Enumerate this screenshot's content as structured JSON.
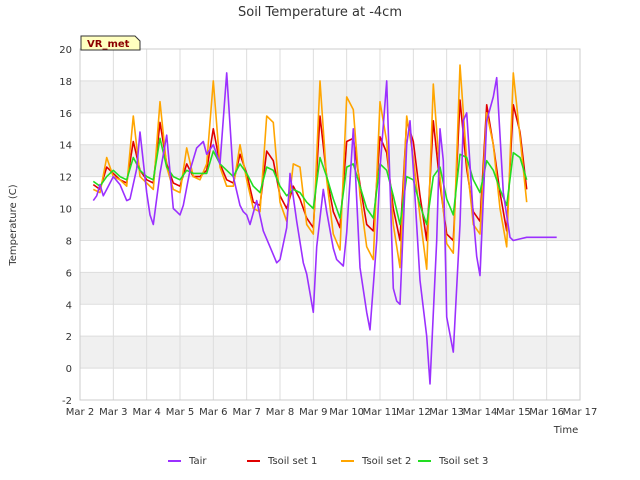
{
  "chart_data": {
    "type": "line",
    "title": "Soil Temperature at -4cm",
    "xlabel": "Time",
    "ylabel": "Temperature (C)",
    "badge": "VR_met",
    "xlim": [
      2,
      17
    ],
    "ylim": [
      -2,
      20
    ],
    "x_ticks": [
      2,
      3,
      4,
      5,
      6,
      7,
      8,
      9,
      10,
      11,
      12,
      13,
      14,
      15,
      16,
      17
    ],
    "x_tick_labels": [
      "Mar 2",
      "Mar 3",
      "Mar 4",
      "Mar 5",
      "Mar 6",
      "Mar 7",
      "Mar 8",
      "Mar 9",
      "Mar 10",
      "Mar 11",
      "Mar 12",
      "Mar 13",
      "Mar 14",
      "Mar 15",
      "Mar 16",
      "Mar 17"
    ],
    "y_ticks": [
      -2,
      0,
      2,
      4,
      6,
      8,
      10,
      12,
      14,
      16,
      18,
      20
    ],
    "y_tick_labels": [
      "-2",
      "0",
      "2",
      "4",
      "6",
      "8",
      "10",
      "12",
      "14",
      "16",
      "18",
      "20"
    ],
    "grid": true,
    "legend_position": "bottom",
    "series": [
      {
        "name": "Tair",
        "color": "#9b30ff",
        "x": [
          2.4,
          2.5,
          2.6,
          2.7,
          2.8,
          3.0,
          3.2,
          3.4,
          3.5,
          3.7,
          3.8,
          4.0,
          4.1,
          4.2,
          4.4,
          4.6,
          4.8,
          4.9,
          5.0,
          5.1,
          5.3,
          5.5,
          5.7,
          5.8,
          6.0,
          6.2,
          6.4,
          6.6,
          6.8,
          6.9,
          7.0,
          7.1,
          7.3,
          7.5,
          7.7,
          7.9,
          8.0,
          8.2,
          8.3,
          8.5,
          8.7,
          8.8,
          9.0,
          9.1,
          9.3,
          9.4,
          9.6,
          9.7,
          9.9,
          10.0,
          10.2,
          10.4,
          10.6,
          10.7,
          10.9,
          11.0,
          11.2,
          11.4,
          11.5,
          11.6,
          11.8,
          11.9,
          12.0,
          12.2,
          12.4,
          12.5,
          12.7,
          12.8,
          12.9,
          13.0,
          13.2,
          13.4,
          13.5,
          13.6,
          13.8,
          13.9,
          14.0,
          14.2,
          14.4,
          14.5,
          14.7,
          14.9,
          15.0,
          15.2,
          15.4,
          15.5,
          15.7,
          15.9,
          16.0,
          16.2,
          16.3
        ],
        "y": [
          10.5,
          10.8,
          11.5,
          10.8,
          11.2,
          12.0,
          11.5,
          10.5,
          10.6,
          12.5,
          14.8,
          11.0,
          9.6,
          9.0,
          12.2,
          14.6,
          10.0,
          9.8,
          9.6,
          10.2,
          12.4,
          13.8,
          14.2,
          13.4,
          14.0,
          12.8,
          18.5,
          12.0,
          10.2,
          9.8,
          9.6,
          9.0,
          10.5,
          8.6,
          7.6,
          6.6,
          6.8,
          8.8,
          12.2,
          9.2,
          6.6,
          5.9,
          3.5,
          7.6,
          11.2,
          9.8,
          7.5,
          6.8,
          6.4,
          8.5,
          15.0,
          6.3,
          3.5,
          2.4,
          8.0,
          12.5,
          18.0,
          5.0,
          4.2,
          4.0,
          14.0,
          15.5,
          12.5,
          5.5,
          2.0,
          -1.0,
          8.0,
          15.0,
          13.0,
          3.2,
          1.0,
          9.0,
          15.5,
          16.0,
          9.5,
          7.0,
          5.8,
          15.5,
          17.0,
          18.2,
          11.0,
          8.2,
          8.0,
          8.1,
          8.2,
          8.2,
          8.2,
          8.2,
          8.2,
          8.2,
          8.2
        ]
      },
      {
        "name": "Tsoil set 1",
        "color": "#e00000",
        "x": [
          2.4,
          2.6,
          2.8,
          3.0,
          3.2,
          3.4,
          3.6,
          3.8,
          4.0,
          4.2,
          4.4,
          4.6,
          4.8,
          5.0,
          5.2,
          5.4,
          5.6,
          5.8,
          6.0,
          6.2,
          6.4,
          6.6,
          6.8,
          7.0,
          7.2,
          7.4,
          7.6,
          7.8,
          8.0,
          8.2,
          8.4,
          8.6,
          8.8,
          9.0,
          9.2,
          9.4,
          9.6,
          9.8,
          10.0,
          10.2,
          10.4,
          10.6,
          10.8,
          11.0,
          11.2,
          11.4,
          11.6,
          11.8,
          12.0,
          12.2,
          12.4,
          12.6,
          12.8,
          13.0,
          13.2,
          13.4,
          13.6,
          13.8,
          14.0,
          14.2,
          14.4,
          14.6,
          14.8,
          15.0,
          15.2,
          15.4
        ],
        "y": [
          11.5,
          11.2,
          12.6,
          12.2,
          11.8,
          11.6,
          14.2,
          12.4,
          11.8,
          11.6,
          15.4,
          12.8,
          11.6,
          11.4,
          12.8,
          12.0,
          12.0,
          12.4,
          15.0,
          12.8,
          11.8,
          11.6,
          13.4,
          12.2,
          10.4,
          10.2,
          13.6,
          13.0,
          10.8,
          10.0,
          11.4,
          10.6,
          9.4,
          8.8,
          15.8,
          12.0,
          9.8,
          8.8,
          14.2,
          14.4,
          11.5,
          9.0,
          8.6,
          14.5,
          13.5,
          10.0,
          8.0,
          15.5,
          14.2,
          10.8,
          8.0,
          15.5,
          11.5,
          8.4,
          8.0,
          16.8,
          12.5,
          9.8,
          9.2,
          16.5,
          14.0,
          11.0,
          8.6,
          16.5,
          14.8,
          11.2
        ]
      },
      {
        "name": "Tsoil set 2",
        "color": "#ffa500",
        "x": [
          2.4,
          2.6,
          2.8,
          3.0,
          3.2,
          3.4,
          3.6,
          3.8,
          4.0,
          4.2,
          4.4,
          4.6,
          4.8,
          5.0,
          5.2,
          5.4,
          5.6,
          5.8,
          6.0,
          6.2,
          6.4,
          6.6,
          6.8,
          7.0,
          7.2,
          7.4,
          7.6,
          7.8,
          8.0,
          8.2,
          8.4,
          8.6,
          8.8,
          9.0,
          9.2,
          9.4,
          9.6,
          9.8,
          10.0,
          10.2,
          10.4,
          10.6,
          10.8,
          11.0,
          11.2,
          11.4,
          11.6,
          11.8,
          12.0,
          12.2,
          12.4,
          12.6,
          12.8,
          13.0,
          13.2,
          13.4,
          13.6,
          13.8,
          14.0,
          14.2,
          14.4,
          14.6,
          14.8,
          15.0,
          15.2,
          15.4
        ],
        "y": [
          11.2,
          11.0,
          13.2,
          12.0,
          11.8,
          11.4,
          15.8,
          12.0,
          11.6,
          11.2,
          16.7,
          12.6,
          11.2,
          11.0,
          13.8,
          12.0,
          11.8,
          12.8,
          18.0,
          12.6,
          11.4,
          11.4,
          14.0,
          11.8,
          10.0,
          9.8,
          15.8,
          15.4,
          10.4,
          9.2,
          12.8,
          12.6,
          9.0,
          8.4,
          18.0,
          11.8,
          8.4,
          7.4,
          17.0,
          16.2,
          10.8,
          7.6,
          6.8,
          16.7,
          14.2,
          9.0,
          6.3,
          15.8,
          13.2,
          9.5,
          6.2,
          17.8,
          12.0,
          7.8,
          7.2,
          19.0,
          13.0,
          9.0,
          8.4,
          16.0,
          14.0,
          10.0,
          7.6,
          18.5,
          14.5,
          10.4
        ]
      },
      {
        "name": "Tsoil set 3",
        "color": "#22dd22",
        "x": [
          2.4,
          2.6,
          2.8,
          3.0,
          3.2,
          3.4,
          3.6,
          3.8,
          4.0,
          4.2,
          4.4,
          4.6,
          4.8,
          5.0,
          5.2,
          5.4,
          5.6,
          5.8,
          6.0,
          6.2,
          6.4,
          6.6,
          6.8,
          7.0,
          7.2,
          7.4,
          7.6,
          7.8,
          8.0,
          8.2,
          8.4,
          8.6,
          8.8,
          9.0,
          9.2,
          9.4,
          9.6,
          9.8,
          10.0,
          10.2,
          10.4,
          10.6,
          10.8,
          11.0,
          11.2,
          11.4,
          11.6,
          11.8,
          12.0,
          12.2,
          12.4,
          12.6,
          12.8,
          13.0,
          13.2,
          13.4,
          13.6,
          13.8,
          14.0,
          14.2,
          14.4,
          14.6,
          14.8,
          15.0,
          15.2,
          15.4
        ],
        "y": [
          11.7,
          11.4,
          12.0,
          12.4,
          12.0,
          11.8,
          13.2,
          12.4,
          12.0,
          11.8,
          14.4,
          12.6,
          12.0,
          11.8,
          12.4,
          12.2,
          12.2,
          12.2,
          13.6,
          12.8,
          12.4,
          12.0,
          12.8,
          12.2,
          11.4,
          11.0,
          12.6,
          12.4,
          11.4,
          10.8,
          11.2,
          11.0,
          10.4,
          10.0,
          13.2,
          12.0,
          10.6,
          9.4,
          12.6,
          12.8,
          11.4,
          10.0,
          9.4,
          12.8,
          12.4,
          10.8,
          9.0,
          12.0,
          11.8,
          10.2,
          9.0,
          12.0,
          12.6,
          10.6,
          9.6,
          13.4,
          13.2,
          11.8,
          11.0,
          13.0,
          12.4,
          11.2,
          10.2,
          13.5,
          13.2,
          11.8
        ]
      }
    ]
  }
}
